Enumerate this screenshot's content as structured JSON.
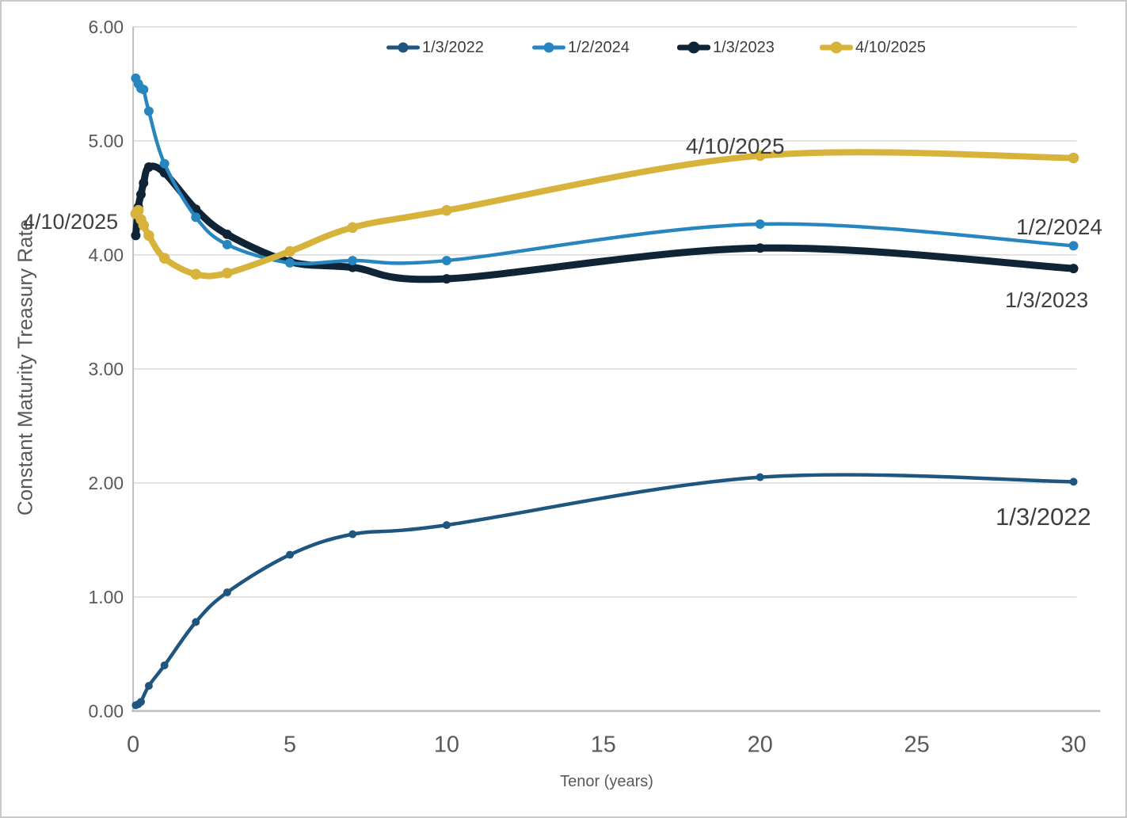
{
  "chart_data": {
    "type": "line",
    "title": "",
    "xlabel": "Tenor (years)",
    "ylabel": "Constant Maturity Treasury Rate",
    "xlim": [
      0,
      30
    ],
    "ylim": [
      0,
      6
    ],
    "x_ticks": [
      "0",
      "5",
      "10",
      "15",
      "20",
      "25",
      "30"
    ],
    "x_tick_values": [
      0,
      5,
      10,
      15,
      20,
      25,
      30
    ],
    "y_ticks": [
      "0.00",
      "1.00",
      "2.00",
      "3.00",
      "4.00",
      "5.00",
      "6.00"
    ],
    "y_tick_values": [
      0,
      1,
      2,
      3,
      4,
      5,
      6
    ],
    "grid": "horizontal",
    "legend_position": "top-center",
    "legend": [
      {
        "label": "1/3/2022"
      },
      {
        "label": "1/2/2024"
      },
      {
        "label": "1/3/2023"
      },
      {
        "label": "4/10/2025"
      }
    ],
    "series": [
      {
        "name": "1/3/2022",
        "color": "#1E567F",
        "line_width": 4.5,
        "marker_radius": 5,
        "smooth": true,
        "x": [
          0.083,
          0.167,
          0.25,
          0.5,
          1,
          2,
          3,
          5,
          7,
          10,
          20,
          30
        ],
        "values": [
          0.05,
          0.06,
          0.08,
          0.22,
          0.4,
          0.78,
          1.04,
          1.37,
          1.55,
          1.63,
          2.05,
          2.01
        ]
      },
      {
        "name": "1/3/2023",
        "color": "#0F2537",
        "line_width": 9,
        "marker_radius": 6,
        "smooth": true,
        "x": [
          0.083,
          0.167,
          0.25,
          0.333,
          0.5,
          1,
          2,
          3,
          5,
          7,
          10,
          20,
          30
        ],
        "values": [
          4.17,
          4.42,
          4.53,
          4.63,
          4.77,
          4.72,
          4.4,
          4.18,
          3.94,
          3.89,
          3.79,
          4.06,
          3.88
        ]
      },
      {
        "name": "1/2/2024",
        "color": "#2786C0",
        "line_width": 4.5,
        "marker_radius": 6,
        "smooth": true,
        "x": [
          0.083,
          0.167,
          0.25,
          0.333,
          0.5,
          1,
          2,
          3,
          5,
          7,
          10,
          20,
          30
        ],
        "values": [
          5.55,
          5.5,
          5.46,
          5.45,
          5.26,
          4.8,
          4.33,
          4.09,
          3.93,
          3.95,
          3.95,
          4.27,
          4.08
        ]
      },
      {
        "name": "4/10/2025",
        "color": "#D8B33C",
        "line_width": 8,
        "marker_radius": 6.8,
        "smooth": true,
        "x": [
          0.083,
          0.125,
          0.167,
          0.25,
          0.333,
          0.5,
          1,
          2,
          3,
          5,
          7,
          10,
          20,
          30
        ],
        "values": [
          4.36,
          4.38,
          4.39,
          4.31,
          4.26,
          4.17,
          3.97,
          3.83,
          3.84,
          4.03,
          4.24,
          4.39,
          4.87,
          4.85
        ]
      }
    ],
    "annotations": [
      {
        "text": "4/10/2025"
      },
      {
        "text": "4/10/2025"
      },
      {
        "text": "1/2/2024"
      },
      {
        "text": "1/3/2023"
      },
      {
        "text": "1/3/2022"
      }
    ],
    "colors": {
      "gridline": "#d9d9d9",
      "axis_line": "#bfbfbf",
      "tick_label": "#595959",
      "annotation": "#3f3f3f"
    }
  }
}
